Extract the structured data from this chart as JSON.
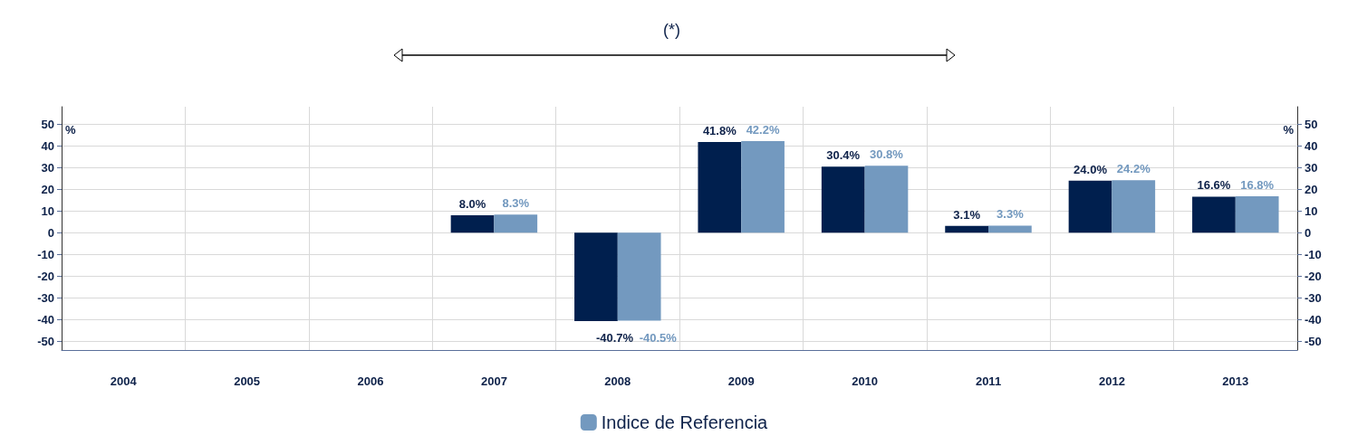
{
  "chart_data": {
    "type": "bar",
    "categories": [
      "2004",
      "2005",
      "2006",
      "2007",
      "2008",
      "2009",
      "2010",
      "2011",
      "2012",
      "2013"
    ],
    "series": [
      {
        "color": "#001f4e",
        "values": [
          null,
          null,
          null,
          8.0,
          -40.7,
          41.8,
          30.4,
          3.1,
          24.0,
          16.6
        ],
        "value_labels": [
          null,
          null,
          null,
          "8.0%",
          "-40.7%",
          "41.8%",
          "30.4%",
          "3.1%",
          "24.0%",
          "16.6%"
        ]
      },
      {
        "name": "Indice de Referencia",
        "color": "#7399bf",
        "values": [
          null,
          null,
          null,
          8.3,
          -40.5,
          42.2,
          30.8,
          3.3,
          24.2,
          16.8
        ],
        "value_labels": [
          null,
          null,
          null,
          "8.3%",
          "-40.5%",
          "42.2%",
          "30.8%",
          "3.3%",
          "24.2%",
          "16.8%"
        ]
      }
    ],
    "ylabel": "%",
    "y2label": "%",
    "ylim": [
      -54,
      58
    ],
    "yticks": [
      -50,
      -40,
      -30,
      -20,
      -10,
      0,
      10,
      20,
      30,
      40,
      50
    ],
    "y2lim": [
      -54,
      58
    ],
    "y2ticks": [
      -50,
      -40,
      -30,
      -20,
      -10,
      0,
      10,
      20,
      30,
      40,
      50
    ],
    "annotations": [
      "(*)"
    ],
    "grid": true,
    "legend": "bottom"
  }
}
